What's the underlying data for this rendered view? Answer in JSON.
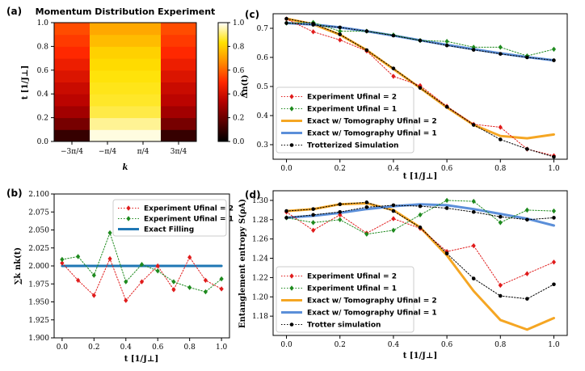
{
  "chart_data": [
    {
      "id": "a",
      "panel_label": "(a)",
      "type": "heatmap",
      "title": "Momentum Distribution Experiment",
      "xlabel": "k",
      "ylabel": "t [1/J⊥]",
      "x_categories": [
        "−3π/4",
        "−π/4",
        "π/4",
        "3π/4"
      ],
      "ylim": [
        0,
        1
      ],
      "yticks": [
        "0.0",
        "0.2",
        "0.4",
        "0.6",
        "0.8",
        "1.0"
      ],
      "t": [
        0.0,
        0.1,
        0.2,
        0.3,
        0.4,
        0.5,
        0.6,
        0.7,
        0.8,
        0.9,
        1.0
      ],
      "values": [
        [
          0.1,
          0.98,
          0.98,
          0.1
        ],
        [
          0.22,
          0.93,
          0.93,
          0.22
        ],
        [
          0.3,
          0.88,
          0.88,
          0.3
        ],
        [
          0.35,
          0.86,
          0.86,
          0.35
        ],
        [
          0.38,
          0.85,
          0.85,
          0.38
        ],
        [
          0.42,
          0.84,
          0.84,
          0.42
        ],
        [
          0.46,
          0.82,
          0.82,
          0.46
        ],
        [
          0.5,
          0.8,
          0.8,
          0.5
        ],
        [
          0.53,
          0.76,
          0.76,
          0.53
        ],
        [
          0.56,
          0.72,
          0.72,
          0.56
        ]
      ],
      "colorbar_ticks": [
        "0.0",
        "0.2",
        "0.4",
        "0.6",
        "0.8",
        "1.0"
      ],
      "colormap": [
        "#000000",
        "#5a0000",
        "#b40000",
        "#ff2800",
        "#ff8c00",
        "#ffe200",
        "#ffffff"
      ]
    },
    {
      "id": "b",
      "panel_label": "(b)",
      "type": "line",
      "xlabel": "t [1/J⊥]",
      "ylabel": "∑k nk(t)",
      "xlim": [
        -0.05,
        1.05
      ],
      "ylim": [
        1.9,
        2.1
      ],
      "xticks": [
        "0.0",
        "0.2",
        "0.4",
        "0.6",
        "0.8",
        "1.0"
      ],
      "yticks": [
        "1.900",
        "1.925",
        "1.950",
        "1.975",
        "2.000",
        "2.025",
        "2.050",
        "2.075",
        "2.100"
      ],
      "legend_position": "upper right",
      "x": [
        0.0,
        0.1,
        0.2,
        0.3,
        0.4,
        0.5,
        0.6,
        0.7,
        0.8,
        0.9,
        1.0
      ],
      "series": [
        {
          "name": "Experiment Ufinal = 2",
          "values": [
            2.004,
            1.98,
            1.959,
            2.01,
            1.952,
            1.978,
            2.0,
            1.967,
            2.012,
            1.98,
            1.968
          ],
          "color": "#e01b1b",
          "style": "dotted",
          "marker": "diamond"
        },
        {
          "name": "Experiment Ufinal = 1",
          "values": [
            2.009,
            2.013,
            1.987,
            2.046,
            1.978,
            2.002,
            1.993,
            1.978,
            1.97,
            1.964,
            1.982
          ],
          "color": "#1e8a1e",
          "style": "dotted",
          "marker": "diamond"
        },
        {
          "name": "Exact Filling",
          "values": [
            2.0,
            2.0,
            2.0,
            2.0,
            2.0,
            2.0,
            2.0,
            2.0,
            2.0,
            2.0,
            2.0
          ],
          "color": "#1f77b4",
          "style": "solid",
          "marker": "none"
        }
      ]
    },
    {
      "id": "c",
      "panel_label": "(c)",
      "type": "line",
      "xlabel": "t [1/J⊥]",
      "ylabel": "Δn(t)",
      "xlim": [
        -0.05,
        1.05
      ],
      "ylim": [
        0.25,
        0.75
      ],
      "xticks": [
        "0.0",
        "0.2",
        "0.4",
        "0.6",
        "0.8",
        "1.0"
      ],
      "yticks": [
        "0.3",
        "0.4",
        "0.5",
        "0.6",
        "0.7"
      ],
      "legend_position": "lower left",
      "x": [
        0.0,
        0.1,
        0.2,
        0.3,
        0.4,
        0.5,
        0.6,
        0.7,
        0.8,
        0.9,
        1.0
      ],
      "series": [
        {
          "name": "Experiment Ufinal = 2",
          "values": [
            0.732,
            0.688,
            0.66,
            0.622,
            0.535,
            0.503,
            0.432,
            0.37,
            0.36,
            0.285,
            0.262
          ],
          "color": "#e01b1b",
          "style": "dotted",
          "marker": "diamond"
        },
        {
          "name": "Experiment Ufinal = 1",
          "values": [
            0.718,
            0.72,
            0.69,
            0.69,
            0.677,
            0.658,
            0.655,
            0.635,
            0.635,
            0.605,
            0.628
          ],
          "color": "#1e8a1e",
          "style": "dotted",
          "marker": "diamond"
        },
        {
          "name": "Exact w/ Tomography Ufinal = 2",
          "values": [
            0.733,
            0.714,
            0.678,
            0.625,
            0.56,
            0.495,
            0.428,
            0.368,
            0.33,
            0.322,
            0.335
          ],
          "color": "#f5a623",
          "style": "solid",
          "marker": "none"
        },
        {
          "name": "Exact w/ Tomography Ufinal = 1",
          "values": [
            0.718,
            0.713,
            0.703,
            0.69,
            0.675,
            0.659,
            0.643,
            0.628,
            0.614,
            0.601,
            0.59
          ],
          "color": "#5b8fd9",
          "style": "solid",
          "marker": "none"
        },
        {
          "name": "Trotterized Simulation",
          "values": [
            0.733,
            0.716,
            0.679,
            0.625,
            0.562,
            0.495,
            0.43,
            0.368,
            0.318,
            0.285,
            0.258
          ],
          "color": "#000000",
          "style": "dotted",
          "marker": "circle"
        }
      ],
      "extra_series": [
        {
          "values": [
            0.718,
            0.712,
            0.703,
            0.69,
            0.675,
            0.658,
            0.641,
            0.626,
            0.612,
            0.6,
            0.59
          ],
          "color": "#000000",
          "style": "dotted",
          "marker": "circle"
        }
      ]
    },
    {
      "id": "d",
      "panel_label": "(d)",
      "type": "line",
      "xlabel": "t [1/J⊥]",
      "ylabel": "Entanglement entropy S(ρA)",
      "xlim": [
        -0.05,
        1.05
      ],
      "ylim": [
        1.16,
        1.31
      ],
      "xticks": [
        "0.0",
        "0.2",
        "0.4",
        "0.6",
        "0.8",
        "1.0"
      ],
      "yticks": [
        "1.18",
        "1.20",
        "1.22",
        "1.24",
        "1.26",
        "1.28",
        "1.30"
      ],
      "legend_position": "lower left",
      "x": [
        0.0,
        0.1,
        0.2,
        0.3,
        0.4,
        0.5,
        0.6,
        0.7,
        0.8,
        0.9,
        1.0
      ],
      "series": [
        {
          "name": "Experiment Ufinal = 2",
          "values": [
            1.288,
            1.269,
            1.285,
            1.266,
            1.281,
            1.271,
            1.247,
            1.253,
            1.212,
            1.224,
            1.236
          ],
          "color": "#e01b1b",
          "style": "dotted",
          "marker": "diamond"
        },
        {
          "name": "Experiment Ufinal = 1",
          "values": [
            1.282,
            1.277,
            1.28,
            1.265,
            1.269,
            1.285,
            1.3,
            1.299,
            1.277,
            1.29,
            1.289
          ],
          "color": "#1e8a1e",
          "style": "dotted",
          "marker": "diamond"
        },
        {
          "name": "Exact w/ Tomography Ufinal = 2",
          "values": [
            1.289,
            1.291,
            1.296,
            1.297,
            1.29,
            1.272,
            1.243,
            1.206,
            1.176,
            1.166,
            1.178
          ],
          "color": "#f5a623",
          "style": "solid",
          "marker": "none"
        },
        {
          "name": "Exact w/ Tomography Ufinal = 1",
          "values": [
            1.282,
            1.284,
            1.287,
            1.291,
            1.294,
            1.296,
            1.295,
            1.291,
            1.286,
            1.281,
            1.274
          ],
          "color": "#5b8fd9",
          "style": "solid",
          "marker": "none"
        },
        {
          "name": "Trotter simulation",
          "values": [
            1.289,
            1.291,
            1.296,
            1.298,
            1.289,
            1.272,
            1.245,
            1.219,
            1.201,
            1.198,
            1.213
          ],
          "color": "#000000",
          "style": "dotted",
          "marker": "circle"
        }
      ],
      "extra_series": [
        {
          "values": [
            1.282,
            1.285,
            1.288,
            1.293,
            1.295,
            1.294,
            1.292,
            1.288,
            1.283,
            1.28,
            1.282
          ],
          "color": "#000000",
          "style": "dotted",
          "marker": "circle"
        }
      ]
    }
  ]
}
